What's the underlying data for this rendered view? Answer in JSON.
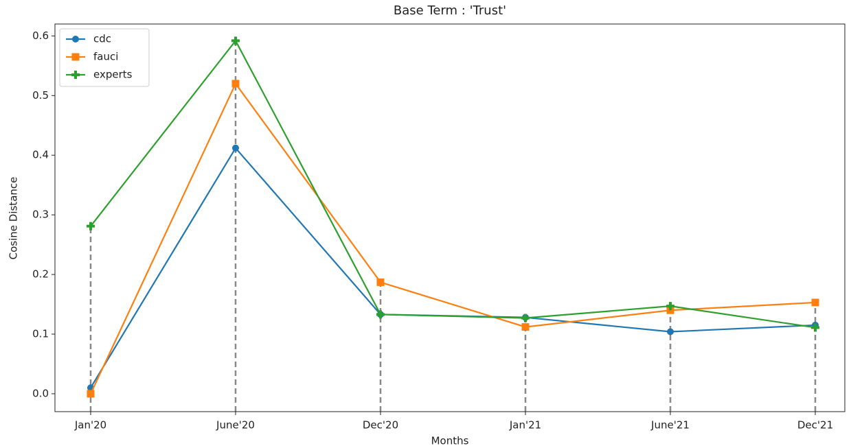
{
  "chart_data": {
    "type": "line",
    "title": "Base Term : 'Trust'",
    "x_label": "Months",
    "y_label": "Cosine Distance",
    "categories": [
      "Jan'20",
      "June'20",
      "Dec'20",
      "Jan'21",
      "June'21",
      "Dec'21"
    ],
    "series": [
      {
        "name": "cdc",
        "color": "#1f77b4",
        "marker": "circle",
        "values": [
          0.01,
          0.412,
          0.133,
          0.128,
          0.104,
          0.115
        ]
      },
      {
        "name": "fauci",
        "color": "#ff7f0e",
        "marker": "square",
        "values": [
          0.0,
          0.52,
          0.187,
          0.112,
          0.14,
          0.153
        ]
      },
      {
        "name": "experts",
        "color": "#2ca02c",
        "marker": "plus",
        "values": [
          0.281,
          0.592,
          0.133,
          0.127,
          0.147,
          0.111
        ]
      }
    ],
    "ylim": [
      -0.03,
      0.62
    ],
    "yticks": [
      {
        "value": 0,
        "label": "0.0"
      },
      0.1,
      0.2,
      0.3,
      0.4,
      0.5,
      0.6
    ],
    "legend": "upper left"
  }
}
